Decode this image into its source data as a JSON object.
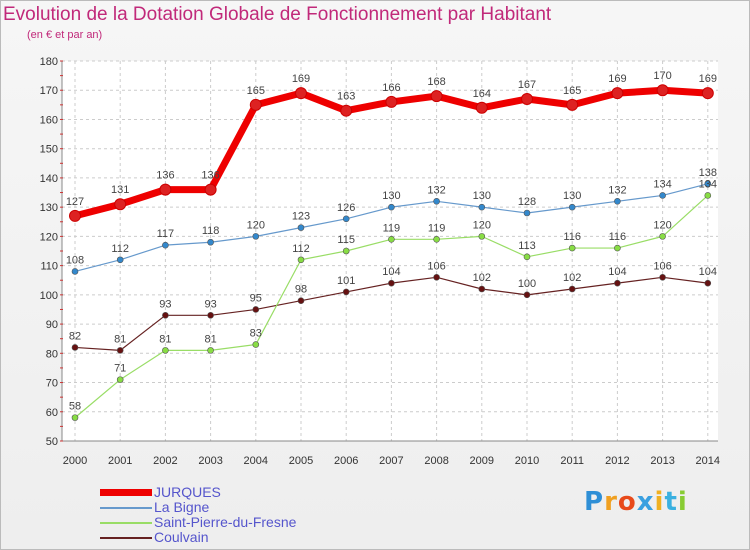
{
  "chart_data": {
    "type": "line",
    "title": "Evolution de la Dotation Globale de Fonctionnement par Habitant",
    "subtitle": "(en € et par an)",
    "xlabel": "",
    "ylabel": "",
    "ylim": [
      50,
      180
    ],
    "yticks": [
      50,
      60,
      70,
      80,
      90,
      100,
      110,
      120,
      130,
      140,
      150,
      160,
      170,
      180
    ],
    "x": [
      "2000",
      "2001",
      "2002",
      "2003",
      "2004",
      "2005",
      "2006",
      "2007",
      "2008",
      "2009",
      "2010",
      "2011",
      "2012",
      "2013",
      "2014"
    ],
    "series": [
      {
        "name": "JURQUES",
        "color": "#ee0000",
        "marker": "#dd2222",
        "values": [
          127,
          131,
          136,
          136,
          165,
          169,
          163,
          166,
          168,
          164,
          167,
          165,
          169,
          170,
          169
        ]
      },
      {
        "name": "La Bigne",
        "color": "#6699cc",
        "marker": "#3388cc",
        "values": [
          108,
          112,
          117,
          118,
          120,
          123,
          126,
          130,
          132,
          130,
          128,
          130,
          132,
          134,
          138
        ]
      },
      {
        "name": "Saint-Pierre-du-Fresne",
        "color": "#99dd66",
        "marker": "#88dd44",
        "values": [
          58,
          71,
          81,
          81,
          83,
          112,
          115,
          119,
          119,
          120,
          113,
          116,
          116,
          120,
          134
        ]
      },
      {
        "name": "Coulvain",
        "color": "#662222",
        "marker": "#661111",
        "values": [
          82,
          81,
          93,
          93,
          95,
          98,
          101,
          104,
          106,
          102,
          100,
          102,
          104,
          106,
          104
        ]
      }
    ],
    "legend_position": "bottom-left"
  },
  "logo": {
    "letters": [
      "P",
      "r",
      "o",
      "x",
      "i",
      "t",
      "i"
    ],
    "colors": [
      "#2f8fd6",
      "#f0a020",
      "#e84a1a",
      "#3aa0e0",
      "#f0b020",
      "#3ab0e0",
      "#88cc33"
    ]
  }
}
